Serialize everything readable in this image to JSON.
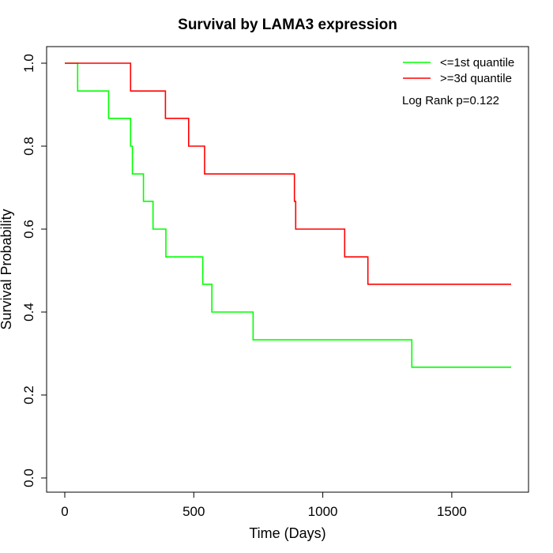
{
  "chart_data": {
    "type": "line",
    "step": true,
    "title": "Survival by LAMA3 expression",
    "xlabel": "Time (Days)",
    "ylabel": "Survival Probability",
    "xlim": [
      0,
      1730
    ],
    "ylim": [
      0,
      1
    ],
    "xticks": [
      "0",
      "500",
      "1000",
      "1500"
    ],
    "xtick_values": [
      0,
      500,
      1000,
      1500
    ],
    "yticks": [
      "0.0",
      "0.2",
      "0.4",
      "0.6",
      "0.8",
      "1.0"
    ],
    "ytick_values": [
      0,
      0.2,
      0.4,
      0.6,
      0.8,
      1.0
    ],
    "grid": false,
    "legend_position": "top-right",
    "annotation": "Log Rank p=0.122",
    "series": [
      {
        "name": "<=1st quantile",
        "color": "#00ff00",
        "x": [
          0,
          50,
          170,
          255,
          262,
          305,
          342,
          392,
          535,
          570,
          730,
          1345,
          1730
        ],
        "y": [
          1.0,
          0.933,
          0.867,
          0.8,
          0.733,
          0.667,
          0.6,
          0.533,
          0.467,
          0.4,
          0.333,
          0.267,
          0.267
        ]
      },
      {
        "name": ">=3d quantile",
        "color": "#ff0000",
        "x": [
          0,
          255,
          390,
          480,
          542,
          890,
          895,
          1085,
          1175,
          1730
        ],
        "y": [
          1.0,
          0.933,
          0.867,
          0.8,
          0.733,
          0.667,
          0.6,
          0.533,
          0.467,
          0.467
        ]
      }
    ]
  }
}
